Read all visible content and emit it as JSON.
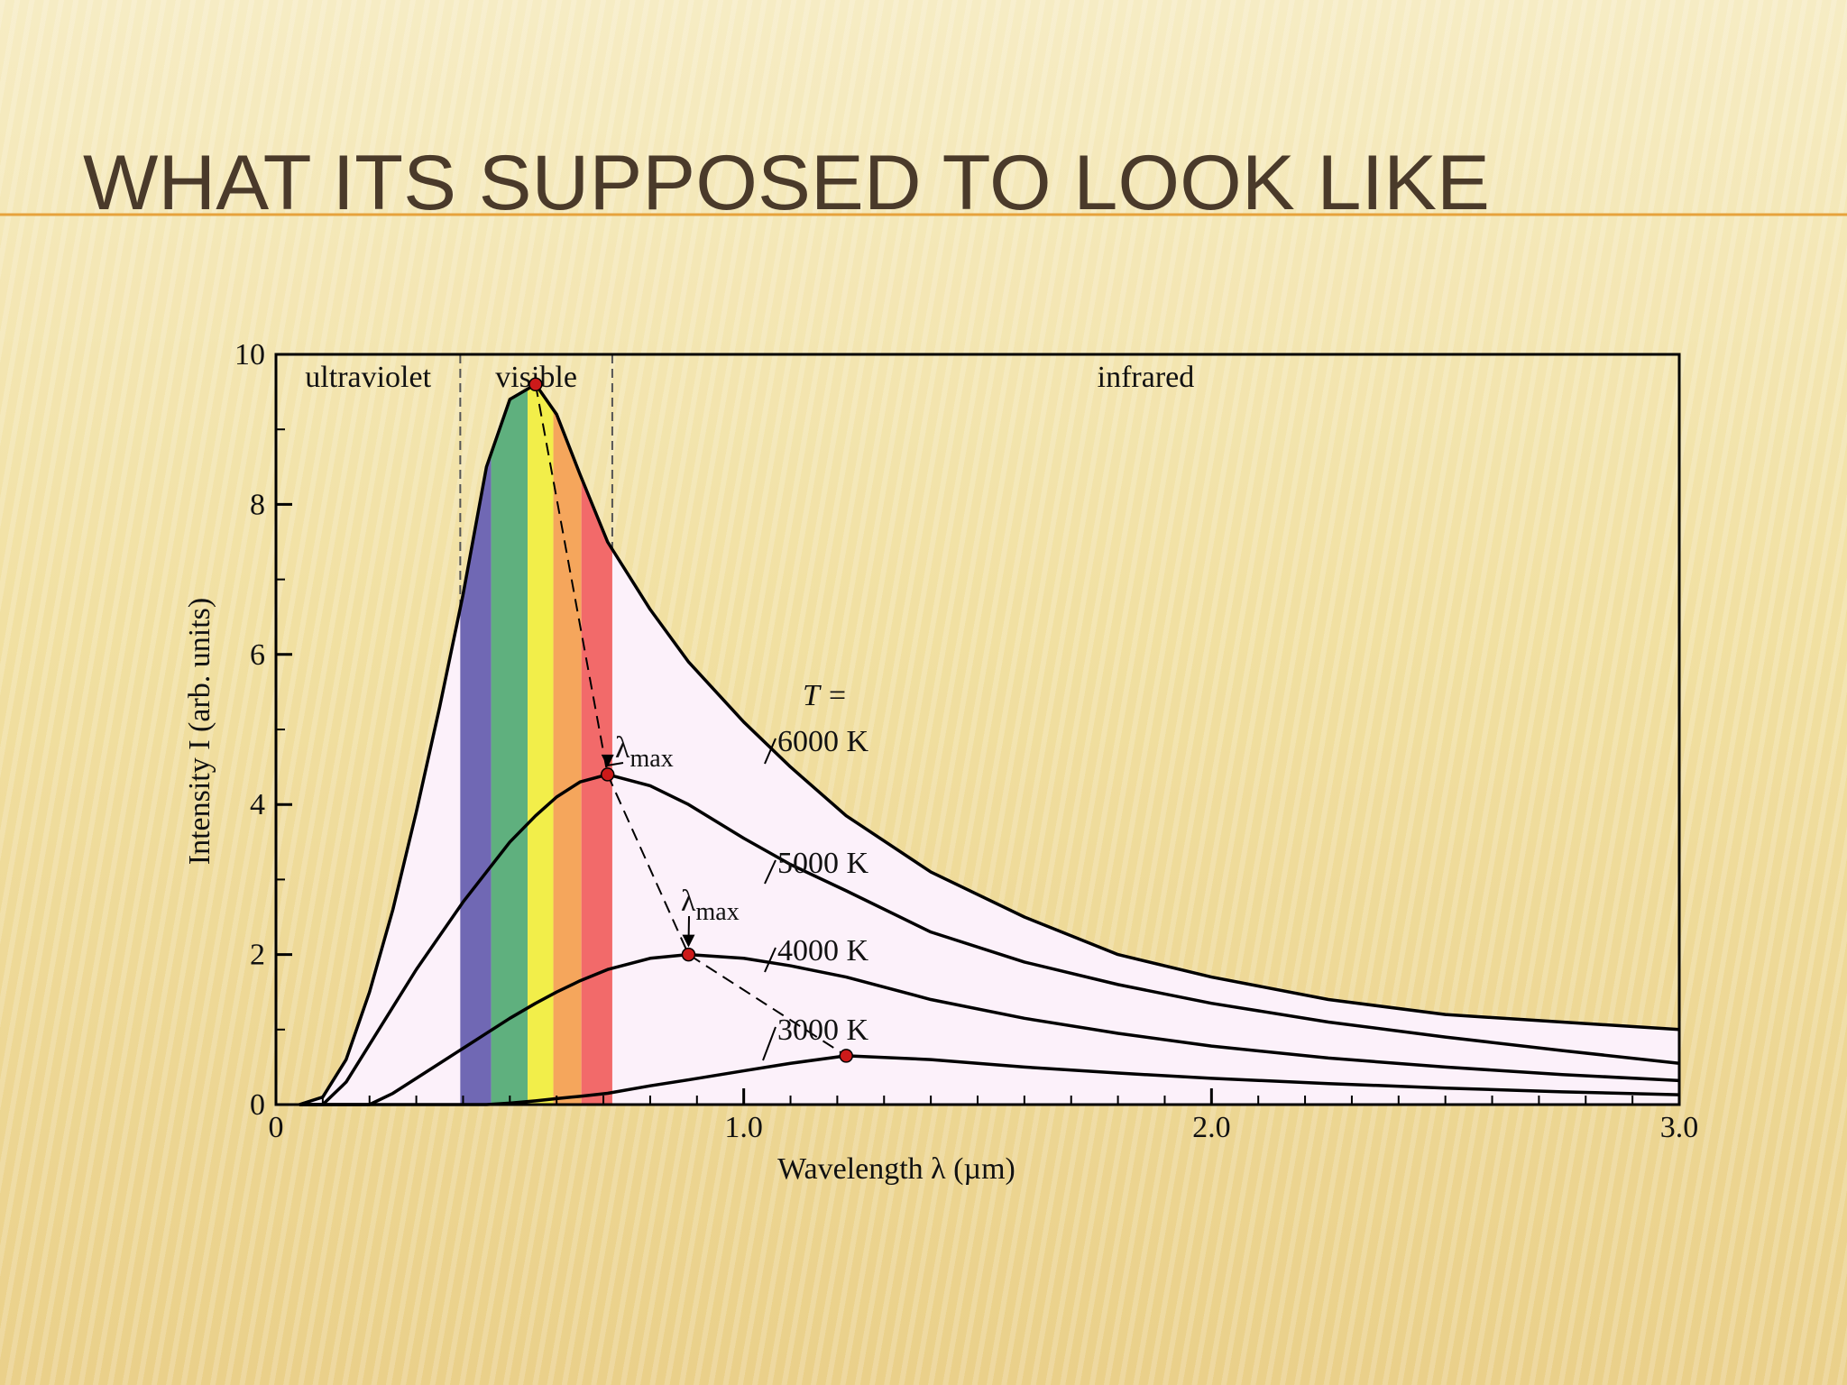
{
  "header": {
    "title": "WHAT ITS SUPPOSED TO LOOK LIKE"
  },
  "chart_data": {
    "type": "line",
    "x_label": "Wavelength λ (µm)",
    "y_label": "Intensity I (arb. units)",
    "xlim": [
      0,
      3
    ],
    "ylim": [
      0,
      10
    ],
    "xticks": [
      0,
      {
        "value": 1,
        "label": "1.0"
      },
      {
        "value": 2,
        "label": "2.0"
      },
      {
        "value": 3,
        "label": "3.0"
      }
    ],
    "yticks": [
      0,
      2,
      4,
      6,
      8,
      10
    ],
    "x_minor_step": 0.1,
    "y_minor_step": 1,
    "regions": [
      {
        "label": "ultraviolet",
        "from": 0,
        "to": 0.394
      },
      {
        "label": "visible",
        "from": 0.394,
        "to": 0.719
      },
      {
        "label": "infrared",
        "from": 0.719,
        "to": 3
      }
    ],
    "region_fill": "#fcf1fa",
    "bands": [
      {
        "from": 0.394,
        "to": 0.46,
        "color": "#7068b4"
      },
      {
        "from": 0.46,
        "to": 0.538,
        "color": "#5fb07e"
      },
      {
        "from": 0.538,
        "to": 0.593,
        "color": "#f2ee4a"
      },
      {
        "from": 0.593,
        "to": 0.653,
        "color": "#f5a65c"
      },
      {
        "from": 0.653,
        "to": 0.719,
        "color": "#f26a6a"
      }
    ],
    "temperature_label": "T =",
    "x": [
      0.05,
      0.1,
      0.15,
      0.2,
      0.25,
      0.3,
      0.35,
      0.4,
      0.45,
      0.5,
      0.555,
      0.6,
      0.65,
      0.709,
      0.8,
      0.882,
      1.0,
      1.1,
      1.219,
      1.4,
      1.6,
      1.8,
      2.0,
      2.25,
      2.5,
      2.75,
      3.0
    ],
    "series": [
      {
        "name": "6000 K",
        "color": "#000000",
        "values": [
          0,
          0.1,
          0.6,
          1.5,
          2.6,
          3.9,
          5.3,
          6.8,
          8.5,
          9.4,
          9.6,
          9.2,
          8.4,
          7.5,
          6.6,
          5.9,
          5.1,
          4.5,
          3.85,
          3.1,
          2.5,
          2.0,
          1.7,
          1.4,
          1.2,
          1.1,
          1.0
        ]
      },
      {
        "name": "5000 K",
        "color": "#000000",
        "values": [
          0,
          0,
          0.3,
          0.8,
          1.3,
          1.8,
          2.25,
          2.7,
          3.1,
          3.5,
          3.85,
          4.1,
          4.3,
          4.4,
          4.25,
          4.0,
          3.55,
          3.2,
          2.85,
          2.3,
          1.9,
          1.6,
          1.35,
          1.1,
          0.9,
          0.72,
          0.55
        ]
      },
      {
        "name": "4000 K",
        "color": "#000000",
        "values": [
          0,
          0,
          0,
          0,
          0.15,
          0.35,
          0.55,
          0.75,
          0.95,
          1.15,
          1.35,
          1.5,
          1.65,
          1.8,
          1.95,
          2.0,
          1.95,
          1.85,
          1.7,
          1.4,
          1.15,
          0.95,
          0.78,
          0.62,
          0.5,
          0.4,
          0.32
        ]
      },
      {
        "name": "3000 K",
        "color": "#000000",
        "values": [
          0,
          0,
          0,
          0,
          0,
          0,
          0,
          0,
          0,
          0.02,
          0.05,
          0.08,
          0.11,
          0.15,
          0.25,
          0.33,
          0.45,
          0.55,
          0.65,
          0.6,
          0.5,
          0.42,
          0.35,
          0.28,
          0.22,
          0.17,
          0.13
        ]
      }
    ],
    "peaks": {
      "color": "#cc1a1a",
      "x": [
        0.555,
        0.709,
        0.882,
        1.219
      ],
      "y": [
        9.6,
        4.4,
        2.0,
        0.65
      ]
    },
    "annotations": [
      {
        "symbol": "λ",
        "subscript": "max"
      },
      {
        "symbol": "λ",
        "subscript": "max"
      }
    ]
  }
}
